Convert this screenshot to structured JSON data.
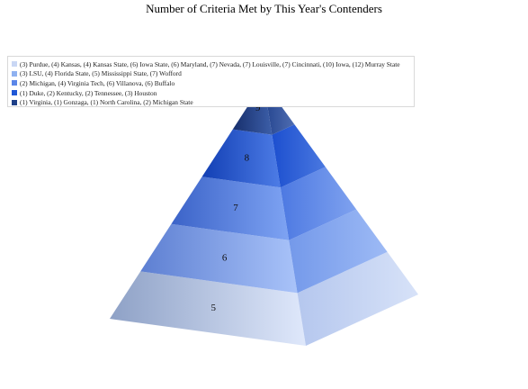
{
  "chart_data": {
    "type": "pyramid",
    "title": "Number of Criteria Met by This Year's Contenders",
    "levels": [
      {
        "label": "5",
        "legend": "(3) Purdue, (4) Kansas, (4) Kansas State, (6) Iowa State, (6) Maryland, (7) Nevada, (7) Louisville, (7) Cincinnati, (10) Iowa, (12) Murray State",
        "color": "#c9d7f4"
      },
      {
        "label": "6",
        "legend": "(3) LSU, (4) Florida State, (5) Mississippi State, (7) Wofford",
        "color": "#8fb1f0"
      },
      {
        "label": "7",
        "legend": "(2) Michigan, (4) Virginia Tech, (6) Villanova, (6) Buffalo",
        "color": "#5b86e8"
      },
      {
        "label": "8",
        "legend": "(1) Duke, (2) Kentucky, (2) Tennessee, (3) Houston",
        "color": "#1f57d6"
      },
      {
        "label": "9",
        "legend": "(1) Virginia, (1) Gonzaga, (1) North Carolina, (2) Michigan State",
        "color": "#1d3f87"
      }
    ],
    "legend_position": "top-left"
  }
}
